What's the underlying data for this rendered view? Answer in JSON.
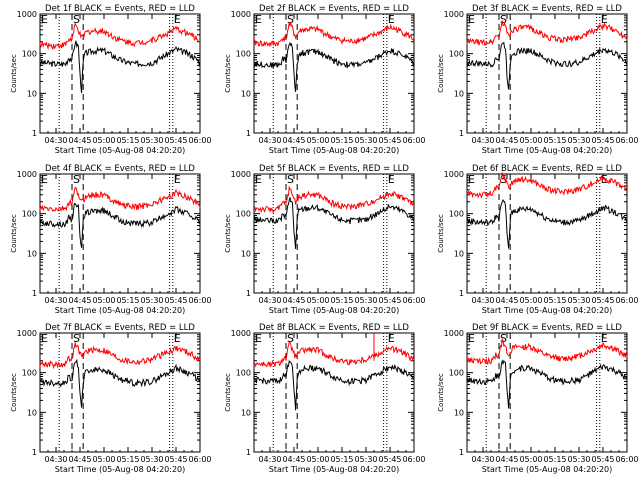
{
  "chart_data": {
    "type": "line",
    "panels": [
      {
        "title": "Det 1f BLACK = Events, RED = LLD"
      },
      {
        "title": "Det 2f BLACK = Events, RED = LLD"
      },
      {
        "title": "Det 3f BLACK = Events, RED = LLD"
      },
      {
        "title": "Det 4f BLACK = Events, RED = LLD"
      },
      {
        "title": "Det 5f BLACK = Events, RED = LLD"
      },
      {
        "title": "Det 6f BLACK = Events, RED = LLD"
      },
      {
        "title": "Det 7f BLACK = Events, RED = LLD"
      },
      {
        "title": "Det 8f BLACK = Events, RED = LLD"
      },
      {
        "title": "Det 9f BLACK = Events, RED = LLD"
      }
    ],
    "xlabel": "Start Time (05-Aug-08 04:20:20)",
    "ylabel": "Counts/sec",
    "yscale": "log",
    "ylim": [
      1,
      1000
    ],
    "yticks": [
      "1",
      "10",
      "100",
      "1000"
    ],
    "xlim": [
      "04:20",
      "06:00"
    ],
    "xticks": [
      "04:30",
      "04:45",
      "05:00",
      "05:15",
      "05:30",
      "05:45",
      "06:00"
    ],
    "markers": [
      {
        "label": "E",
        "time": "04:20",
        "style": "dotted"
      },
      {
        "label": "",
        "time": "04:32",
        "style": "dotted"
      },
      {
        "label": "S",
        "time": "04:40",
        "style": "dashed"
      },
      {
        "label": "",
        "time": "04:47",
        "style": "dashed"
      },
      {
        "label": "",
        "time": "05:41",
        "style": "dotted"
      },
      {
        "label": "E",
        "time": "05:43",
        "style": "dotted"
      }
    ],
    "series": [
      {
        "color": "#000000",
        "x": [
          "04:20",
          "04:30",
          "04:36",
          "04:38",
          "04:40",
          "04:42",
          "04:44",
          "04:45",
          "04:46",
          "04:47",
          "04:48",
          "04:50",
          "04:55",
          "05:00",
          "05:10",
          "05:15",
          "05:20",
          "05:30",
          "05:40",
          "05:45",
          "05:50",
          "05:55",
          "06:00"
        ],
        "y": [
          60,
          55,
          55,
          80,
          70,
          200,
          150,
          30,
          12,
          60,
          100,
          110,
          120,
          120,
          70,
          60,
          55,
          60,
          100,
          130,
          110,
          90,
          60
        ]
      },
      {
        "color": "#ff0000",
        "x": [
          "04:20",
          "04:30",
          "04:36",
          "04:38",
          "04:40",
          "04:42",
          "04:44",
          "04:45",
          "04:46",
          "04:47",
          "04:48",
          "04:50",
          "04:55",
          "05:00",
          "05:10",
          "05:15",
          "05:20",
          "05:30",
          "05:40",
          "05:45",
          "05:50",
          "05:55",
          "06:00"
        ],
        "y": [
          170,
          160,
          170,
          230,
          230,
          520,
          400,
          300,
          250,
          260,
          330,
          360,
          380,
          370,
          220,
          200,
          185,
          220,
          330,
          420,
          360,
          290,
          210
        ]
      }
    ]
  }
}
